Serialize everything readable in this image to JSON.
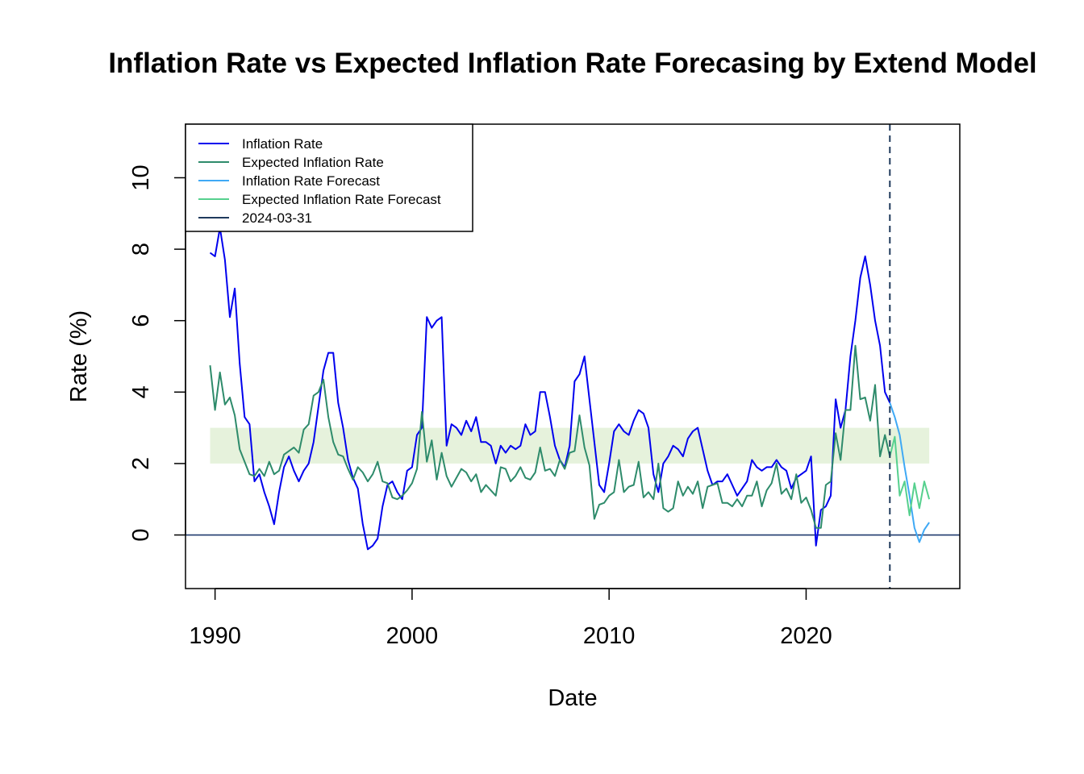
{
  "chart_data": {
    "type": "line",
    "title": "Inflation Rate vs Expected Inflation Rate Forecasing by Extend Model",
    "xlabel": "Date",
    "ylabel": "Rate (%)",
    "xlim": [
      1988.5,
      2027.8
    ],
    "ylim": [
      -1.5,
      11.5
    ],
    "x_ticks": [
      1990,
      2000,
      2010,
      2020
    ],
    "x_tick_labels": [
      "1990",
      "2000",
      "2010",
      "2020"
    ],
    "y_ticks": [
      0,
      2,
      4,
      6,
      8,
      10
    ],
    "y_tick_labels": [
      "0",
      "2",
      "4",
      "6",
      "8",
      "10"
    ],
    "target_band": {
      "x_start": 1989.75,
      "x_end": 2026.25,
      "y_low": 2,
      "y_high": 3,
      "color": "#e6f2dc"
    },
    "zero_line": {
      "y": 0,
      "color": "#1f3a6e"
    },
    "vline": {
      "x": 2024.25,
      "label": "2024-03-31",
      "color": "#1f3a5c"
    },
    "legend": {
      "position": "top-left"
    },
    "series": [
      {
        "name": "Inflation Rate",
        "color": "#0000ee",
        "x": [
          1989.75,
          1990.0,
          1990.25,
          1990.5,
          1990.75,
          1991.0,
          1991.25,
          1991.5,
          1991.75,
          1992.0,
          1992.25,
          1992.5,
          1992.75,
          1993.0,
          1993.25,
          1993.5,
          1993.75,
          1994.0,
          1994.25,
          1994.5,
          1994.75,
          1995.0,
          1995.25,
          1995.5,
          1995.75,
          1996.0,
          1996.25,
          1996.5,
          1996.75,
          1997.0,
          1997.25,
          1997.5,
          1997.75,
          1998.0,
          1998.25,
          1998.5,
          1998.75,
          1999.0,
          1999.25,
          1999.5,
          1999.75,
          2000.0,
          2000.25,
          2000.5,
          2000.75,
          2001.0,
          2001.25,
          2001.5,
          2001.75,
          2002.0,
          2002.25,
          2002.5,
          2002.75,
          2003.0,
          2003.25,
          2003.5,
          2003.75,
          2004.0,
          2004.25,
          2004.5,
          2004.75,
          2005.0,
          2005.25,
          2005.5,
          2005.75,
          2006.0,
          2006.25,
          2006.5,
          2006.75,
          2007.0,
          2007.25,
          2007.5,
          2007.75,
          2008.0,
          2008.25,
          2008.5,
          2008.75,
          2009.0,
          2009.25,
          2009.5,
          2009.75,
          2010.0,
          2010.25,
          2010.5,
          2010.75,
          2011.0,
          2011.25,
          2011.5,
          2011.75,
          2012.0,
          2012.25,
          2012.5,
          2012.75,
          2013.0,
          2013.25,
          2013.5,
          2013.75,
          2014.0,
          2014.25,
          2014.5,
          2014.75,
          2015.0,
          2015.25,
          2015.5,
          2015.75,
          2016.0,
          2016.25,
          2016.5,
          2016.75,
          2017.0,
          2017.25,
          2017.5,
          2017.75,
          2018.0,
          2018.25,
          2018.5,
          2018.75,
          2019.0,
          2019.25,
          2019.5,
          2019.75,
          2020.0,
          2020.25,
          2020.5,
          2020.75,
          2021.0,
          2021.25,
          2021.5,
          2021.75,
          2022.0,
          2022.25,
          2022.5,
          2022.75,
          2023.0,
          2023.25,
          2023.5,
          2023.75,
          2024.0,
          2024.25
        ],
        "y": [
          7.9,
          7.8,
          8.6,
          7.7,
          6.1,
          6.9,
          4.8,
          3.3,
          3.1,
          1.5,
          1.7,
          1.2,
          0.8,
          0.3,
          1.2,
          1.9,
          2.2,
          1.8,
          1.5,
          1.8,
          2.0,
          2.6,
          3.6,
          4.6,
          5.1,
          5.1,
          3.7,
          3.0,
          2.1,
          1.6,
          1.3,
          0.3,
          -0.4,
          -0.3,
          -0.1,
          0.8,
          1.4,
          1.5,
          1.2,
          1.0,
          1.8,
          1.9,
          2.8,
          3.0,
          6.1,
          5.8,
          6.0,
          6.1,
          2.5,
          3.1,
          3.0,
          2.8,
          3.2,
          2.9,
          3.3,
          2.6,
          2.6,
          2.5,
          2.0,
          2.5,
          2.3,
          2.5,
          2.4,
          2.5,
          3.1,
          2.8,
          2.9,
          4.0,
          4.0,
          3.3,
          2.5,
          2.1,
          1.9,
          2.5,
          4.3,
          4.5,
          5.0,
          3.8,
          2.6,
          1.4,
          1.2,
          2.0,
          2.9,
          3.1,
          2.9,
          2.8,
          3.2,
          3.5,
          3.4,
          3.0,
          1.7,
          1.2,
          2.0,
          2.2,
          2.5,
          2.4,
          2.2,
          2.7,
          2.9,
          3.0,
          2.4,
          1.8,
          1.4,
          1.5,
          1.5,
          1.7,
          1.4,
          1.1,
          1.3,
          1.5,
          2.1,
          1.9,
          1.8,
          1.9,
          1.9,
          2.1,
          1.9,
          1.8,
          1.3,
          1.6,
          1.7,
          1.8,
          2.2,
          -0.3,
          0.7,
          0.8,
          1.1,
          3.8,
          3.0,
          3.5,
          5.0,
          6.0,
          7.2,
          7.8,
          7.0,
          6.0,
          5.3,
          4.0,
          3.7
        ]
      },
      {
        "name": "Expected Inflation Rate",
        "color": "#2e8b6b",
        "x": [
          1989.75,
          1990.0,
          1990.25,
          1990.5,
          1990.75,
          1991.0,
          1991.25,
          1991.5,
          1991.75,
          1992.0,
          1992.25,
          1992.5,
          1992.75,
          1993.0,
          1993.25,
          1993.5,
          1993.75,
          1994.0,
          1994.25,
          1994.5,
          1994.75,
          1995.0,
          1995.25,
          1995.5,
          1995.75,
          1996.0,
          1996.25,
          1996.5,
          1996.75,
          1997.0,
          1997.25,
          1997.5,
          1997.75,
          1998.0,
          1998.25,
          1998.5,
          1998.75,
          1999.0,
          1999.25,
          1999.5,
          1999.75,
          2000.0,
          2000.25,
          2000.5,
          2000.75,
          2001.0,
          2001.25,
          2001.5,
          2001.75,
          2002.0,
          2002.25,
          2002.5,
          2002.75,
          2003.0,
          2003.25,
          2003.5,
          2003.75,
          2004.0,
          2004.25,
          2004.5,
          2004.75,
          2005.0,
          2005.25,
          2005.5,
          2005.75,
          2006.0,
          2006.25,
          2006.5,
          2006.75,
          2007.0,
          2007.25,
          2007.5,
          2007.75,
          2008.0,
          2008.25,
          2008.5,
          2008.75,
          2009.0,
          2009.25,
          2009.5,
          2009.75,
          2010.0,
          2010.25,
          2010.5,
          2010.75,
          2011.0,
          2011.25,
          2011.5,
          2011.75,
          2012.0,
          2012.25,
          2012.5,
          2012.75,
          2013.0,
          2013.25,
          2013.5,
          2013.75,
          2014.0,
          2014.25,
          2014.5,
          2014.75,
          2015.0,
          2015.25,
          2015.5,
          2015.75,
          2016.0,
          2016.25,
          2016.5,
          2016.75,
          2017.0,
          2017.25,
          2017.5,
          2017.75,
          2018.0,
          2018.25,
          2018.5,
          2018.75,
          2019.0,
          2019.25,
          2019.5,
          2019.75,
          2020.0,
          2020.25,
          2020.5,
          2020.75,
          2021.0,
          2021.25,
          2021.5,
          2021.75,
          2022.0,
          2022.25,
          2022.5,
          2022.75,
          2023.0,
          2023.25,
          2023.5,
          2023.75,
          2024.0,
          2024.25
        ],
        "y": [
          4.75,
          3.5,
          4.55,
          3.65,
          3.85,
          3.35,
          2.4,
          2.05,
          1.7,
          1.65,
          1.85,
          1.65,
          2.05,
          1.7,
          1.8,
          2.25,
          2.35,
          2.45,
          2.3,
          2.95,
          3.1,
          3.9,
          4.0,
          4.35,
          3.3,
          2.6,
          2.25,
          2.2,
          1.85,
          1.55,
          1.9,
          1.75,
          1.5,
          1.7,
          2.05,
          1.5,
          1.45,
          1.05,
          1.0,
          1.1,
          1.25,
          1.45,
          1.85,
          3.45,
          2.05,
          2.65,
          1.55,
          2.3,
          1.65,
          1.35,
          1.6,
          1.85,
          1.75,
          1.5,
          1.7,
          1.2,
          1.4,
          1.25,
          1.1,
          1.9,
          1.85,
          1.5,
          1.65,
          1.9,
          1.6,
          1.55,
          1.75,
          2.45,
          1.8,
          1.85,
          1.65,
          2.1,
          1.85,
          2.3,
          2.35,
          3.35,
          2.45,
          1.95,
          0.45,
          0.85,
          0.9,
          1.1,
          1.2,
          2.1,
          1.2,
          1.35,
          1.4,
          2.05,
          1.05,
          1.2,
          1.0,
          2.0,
          0.75,
          0.65,
          0.75,
          1.5,
          1.1,
          1.35,
          1.15,
          1.5,
          0.75,
          1.35,
          1.4,
          1.45,
          0.9,
          0.9,
          0.8,
          1.0,
          0.8,
          1.1,
          1.1,
          1.5,
          0.8,
          1.25,
          1.45,
          2.0,
          1.15,
          1.3,
          1.0,
          1.7,
          0.9,
          1.05,
          0.7,
          0.2,
          0.2,
          1.4,
          1.5,
          2.85,
          2.1,
          3.5,
          3.5,
          5.3,
          3.8,
          3.85,
          3.2,
          4.2,
          2.2,
          2.8,
          2.2
        ]
      },
      {
        "name": "Inflation Rate Forecast",
        "color": "#3fa9f5",
        "x": [
          2024.25,
          2024.5,
          2024.75,
          2025.0,
          2025.25,
          2025.5,
          2025.75,
          2026.0,
          2026.25
        ],
        "y": [
          3.7,
          3.3,
          2.8,
          1.9,
          1.1,
          0.2,
          -0.2,
          0.15,
          0.35
        ]
      },
      {
        "name": "Expected Inflation Rate Forecast",
        "color": "#56d08e",
        "x": [
          2024.25,
          2024.5,
          2024.75,
          2025.0,
          2025.25,
          2025.5,
          2025.75,
          2026.0,
          2026.25
        ],
        "y": [
          2.2,
          2.75,
          1.1,
          1.5,
          0.55,
          1.45,
          0.75,
          1.5,
          1.0
        ]
      }
    ]
  }
}
